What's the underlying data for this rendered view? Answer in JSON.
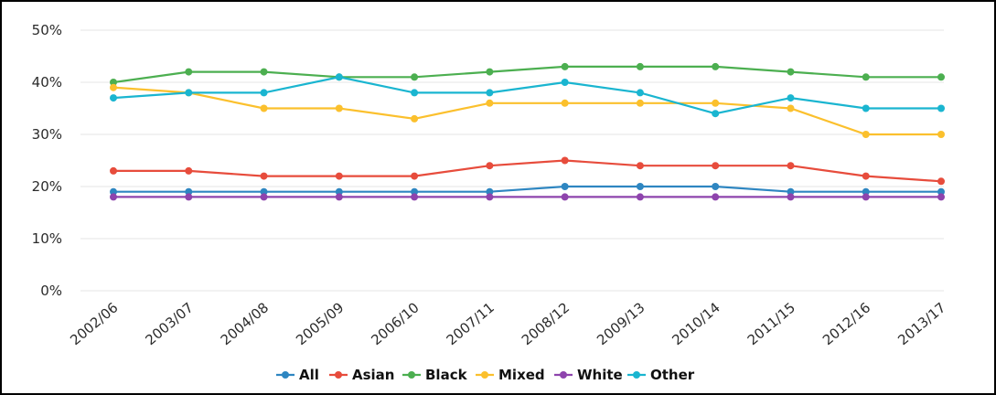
{
  "chart_data": {
    "type": "line",
    "title": "",
    "xlabel": "",
    "ylabel": "",
    "categories": [
      "2002/06",
      "2003/07",
      "2004/08",
      "2005/09",
      "2006/10",
      "2007/11",
      "2008/12",
      "2009/13",
      "2010/14",
      "2011/15",
      "2012/16",
      "2013/17"
    ],
    "ylim": [
      0,
      50
    ],
    "yticks": [
      0,
      10,
      20,
      30,
      40,
      50
    ],
    "ytick_labels": [
      "0%",
      "10%",
      "20%",
      "30%",
      "40%",
      "50%"
    ],
    "grid": true,
    "legend_position": "bottom",
    "series": [
      {
        "name": "All",
        "color": "#2e86c1",
        "values": [
          19,
          19,
          19,
          19,
          19,
          19,
          20,
          20,
          20,
          19,
          19,
          19
        ]
      },
      {
        "name": "Asian",
        "color": "#e74c3c",
        "values": [
          23,
          23,
          22,
          22,
          22,
          24,
          25,
          24,
          24,
          24,
          22,
          21
        ]
      },
      {
        "name": "Black",
        "color": "#4caf50",
        "values": [
          40,
          42,
          42,
          41,
          41,
          42,
          43,
          43,
          43,
          42,
          41,
          41
        ]
      },
      {
        "name": "Mixed",
        "color": "#fbc02d",
        "values": [
          39,
          38,
          35,
          35,
          33,
          36,
          36,
          36,
          36,
          35,
          30,
          30
        ]
      },
      {
        "name": "White",
        "color": "#8e44ad",
        "values": [
          18,
          18,
          18,
          18,
          18,
          18,
          18,
          18,
          18,
          18,
          18,
          18
        ]
      },
      {
        "name": "Other",
        "color": "#1ab5d0",
        "values": [
          37,
          38,
          38,
          41,
          38,
          38,
          40,
          38,
          34,
          37,
          35,
          35
        ]
      }
    ]
  }
}
